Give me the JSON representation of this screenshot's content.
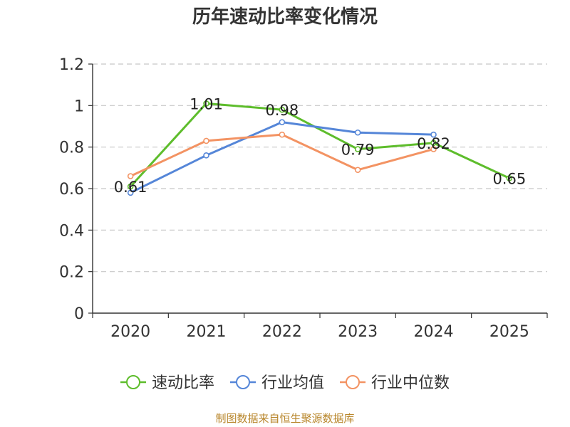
{
  "chart_data": {
    "type": "line",
    "title": "历年速动比率变化情况",
    "source": "制图数据来自恒生聚源数据库",
    "categories": [
      "2020",
      "2021",
      "2022",
      "2023",
      "2024",
      "2025"
    ],
    "ylim": [
      0,
      1.2
    ],
    "yticks": [
      "0",
      "0.2",
      "0.4",
      "0.6",
      "0.8",
      "1",
      "1.2"
    ],
    "grid": true,
    "legend_position": "bottom",
    "series": [
      {
        "name": "速动比率",
        "color": "#5ebd2c",
        "values": [
          0.61,
          1.01,
          0.98,
          0.79,
          0.82,
          0.65
        ],
        "labels": [
          "0.61",
          "1.01",
          "0.98",
          "0.79",
          "0.82",
          "0.65"
        ]
      },
      {
        "name": "行业均值",
        "color": "#5586d8",
        "values": [
          0.58,
          0.76,
          0.92,
          0.87,
          0.86,
          null
        ]
      },
      {
        "name": "行业中位数",
        "color": "#f39363",
        "values": [
          0.66,
          0.83,
          0.86,
          0.69,
          0.79,
          null
        ]
      }
    ]
  }
}
